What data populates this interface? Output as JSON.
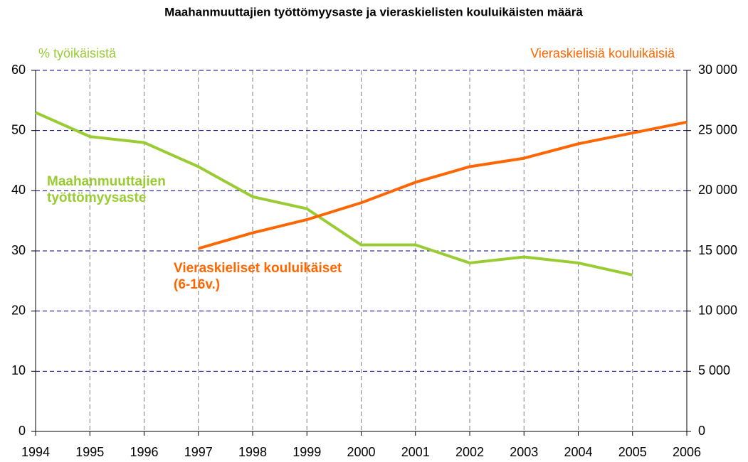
{
  "chart_data": {
    "type": "line",
    "title": "Maahanmuuttajien työttömyysaste ja vieraskielisten kouluikäisten määrä",
    "y_label": "% työikäisistä",
    "y2_label": "Vieraskielisiä kouluikäisiä",
    "x": [
      1994,
      1995,
      1996,
      1997,
      1998,
      1999,
      2000,
      2001,
      2002,
      2003,
      2004,
      2005,
      2006
    ],
    "xlim": [
      1994,
      2006
    ],
    "xticks": [
      1994,
      1995,
      1996,
      1997,
      1998,
      1999,
      2000,
      2001,
      2002,
      2003,
      2004,
      2005,
      2006
    ],
    "ylim": [
      0,
      60
    ],
    "yticks": [
      0,
      10,
      20,
      30,
      40,
      50,
      60
    ],
    "y2lim": [
      0,
      30000
    ],
    "y2ticks": [
      {
        "value": 0,
        "label": "0"
      },
      {
        "value": 5000,
        "label": "5 000"
      },
      {
        "value": 10000,
        "label": "10 000"
      },
      {
        "value": 15000,
        "label": "15 000"
      },
      {
        "value": 20000,
        "label": "20 000"
      },
      {
        "value": 25000,
        "label": "25 000"
      },
      {
        "value": 30000,
        "label": "30 000"
      }
    ],
    "grid": true,
    "series": [
      {
        "name": "Maahanmuuttajien työttömyysaste",
        "color": "#99cc33",
        "values": [
          53,
          49,
          48,
          44,
          39,
          37,
          31,
          31,
          28,
          29,
          28,
          26,
          null
        ]
      },
      {
        "name": "Vieraskieliset kouluikäiset (6-16v.)",
        "color": "#ff6600",
        "axis": "y2",
        "values": [
          null,
          null,
          null,
          15200,
          16500,
          17600,
          19000,
          20700,
          22000,
          22700,
          23900,
          24800,
          25700
        ]
      }
    ]
  }
}
